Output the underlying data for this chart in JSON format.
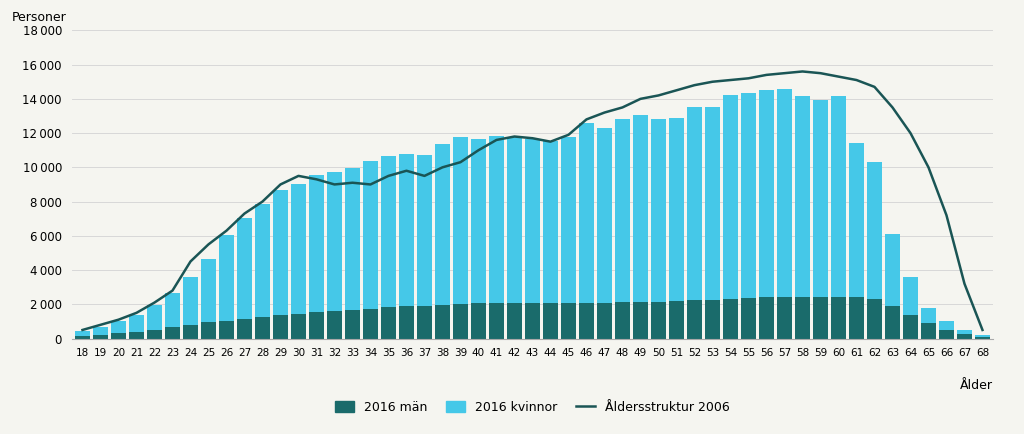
{
  "ages": [
    18,
    19,
    20,
    21,
    22,
    23,
    24,
    25,
    26,
    27,
    28,
    29,
    30,
    31,
    32,
    33,
    34,
    35,
    36,
    37,
    38,
    39,
    40,
    41,
    42,
    43,
    44,
    45,
    46,
    47,
    48,
    49,
    50,
    51,
    52,
    53,
    54,
    55,
    56,
    57,
    58,
    59,
    60,
    61,
    62,
    63,
    64,
    65,
    66,
    67,
    68
  ],
  "men_2016": [
    150,
    220,
    300,
    380,
    520,
    650,
    780,
    950,
    1050,
    1150,
    1250,
    1350,
    1450,
    1550,
    1600,
    1650,
    1750,
    1850,
    1900,
    1900,
    1950,
    2000,
    2050,
    2050,
    2050,
    2050,
    2050,
    2050,
    2100,
    2100,
    2150,
    2150,
    2150,
    2200,
    2250,
    2250,
    2300,
    2350,
    2400,
    2400,
    2450,
    2450,
    2450,
    2400,
    2300,
    1900,
    1400,
    900,
    500,
    250,
    80
  ],
  "women_2016": [
    300,
    480,
    700,
    980,
    1450,
    2000,
    2800,
    3700,
    5000,
    5900,
    6600,
    7300,
    7600,
    8000,
    8100,
    8300,
    8600,
    8800,
    8900,
    8800,
    9400,
    9800,
    9600,
    9800,
    9700,
    9600,
    9500,
    9700,
    10500,
    10200,
    10700,
    10900,
    10700,
    10700,
    11300,
    11300,
    11900,
    12000,
    12100,
    12200,
    11700,
    11500,
    11700,
    9000,
    8000,
    4200,
    2200,
    900,
    550,
    250,
    100
  ],
  "line_2006": [
    500,
    800,
    1100,
    1500,
    2100,
    2800,
    4500,
    5500,
    6300,
    7300,
    8000,
    9000,
    9500,
    9300,
    9000,
    9100,
    9000,
    9500,
    9800,
    9500,
    10000,
    10300,
    11000,
    11600,
    11800,
    11700,
    11500,
    11900,
    12800,
    13200,
    13500,
    14000,
    14200,
    14500,
    14800,
    15000,
    15100,
    15200,
    15400,
    15500,
    15600,
    15500,
    15300,
    15100,
    14700,
    13500,
    12000,
    10000,
    7200,
    3200,
    500
  ],
  "bar_color_men": "#1a6b6b",
  "bar_color_women": "#45c8e8",
  "line_color": "#1a5555",
  "background_color": "#f5f5f0",
  "ylabel": "Personer",
  "xlabel": "Ålder",
  "ylim": [
    0,
    18000
  ],
  "yticks": [
    0,
    2000,
    4000,
    6000,
    8000,
    10000,
    12000,
    14000,
    16000,
    18000
  ],
  "legend_men": "2016 män",
  "legend_women": "2016 kvinnor",
  "legend_line": "Åldersstruktur 2006",
  "grid_color": "#d8d8d8"
}
